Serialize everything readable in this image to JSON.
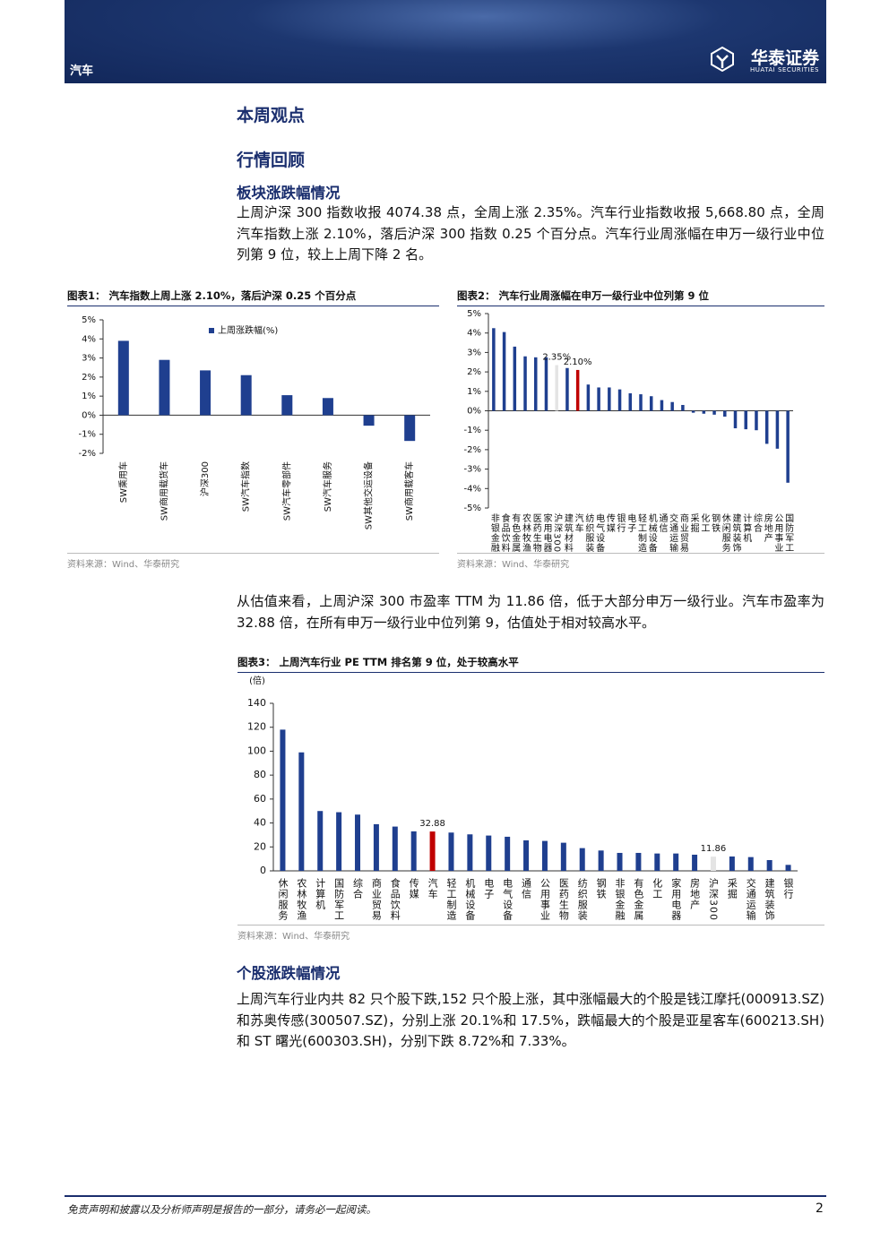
{
  "header": {
    "section": "汽车",
    "brand": "华泰证券",
    "brand_en": "HUATAI SECURITIES"
  },
  "headings": {
    "h1": "本周观点",
    "h2": "行情回顾",
    "h3": "板块涨跌幅情况",
    "h4": "个股涨跌幅情况"
  },
  "paragraphs": [
    "上周沪深 300 指数收报 4074.38 点，全周上涨 2.35%。汽车行业指数收报 5,668.80 点，全周汽车指数上涨 2.10%，落后沪深 300 指数 0.25 个百分点。汽车行业周涨幅在申万一级行业中位列第 9 位，较上上周下降 2 名。",
    "从估值来看，上周沪深 300 市盈率 TTM 为 11.86 倍，低于大部分申万一级行业。汽车市盈率为 32.88 倍，在所有申万一级行业中位列第 9，估值处于相对较高水平。",
    "上周汽车行业内共 82 只个股下跌,152 只个股上涨，其中涨幅最大的个股是钱江摩托(000913.SZ)和苏奥传感(300507.SZ)，分别上涨 20.1%和 17.5%，跌幅最大的个股是亚星客车(600213.SH)和 ST 曙光(600303.SH)，分别下跌 8.72%和 7.33%。"
  ],
  "chart_data": [
    {
      "type": "bar",
      "label": "图表1：",
      "title": "汽车指数上周上涨 2.10%，落后沪深 0.25 个百分点",
      "source": "资料来源：Wind、华泰研究",
      "categories": [
        "SW乘用车",
        "SW商用载货车",
        "沪深300",
        "SW汽车指数",
        "SW汽车零部件",
        "SW汽车服务",
        "SW其他交运设备",
        "SW商用载客车"
      ],
      "series": [
        {
          "name": "上周涨跌幅(%)",
          "color": "#1f3f8f",
          "values": [
            3.9,
            2.9,
            2.35,
            2.1,
            1.05,
            0.9,
            -0.55,
            -1.35
          ]
        }
      ],
      "ylim": [
        -2,
        5
      ],
      "yticks": [
        {
          "value": -2,
          "label": "-2%"
        },
        {
          "value": -1,
          "label": "-1%"
        },
        {
          "value": 0,
          "label": "0%"
        },
        {
          "value": 1,
          "label": "1%"
        },
        {
          "value": 2,
          "label": "2%"
        },
        {
          "value": 3,
          "label": "3%"
        },
        {
          "value": 4,
          "label": "4%"
        },
        {
          "value": 5,
          "label": "5%"
        }
      ],
      "legend": "top"
    },
    {
      "type": "bar",
      "label": "图表2：",
      "title": "汽车行业周涨幅在申万一级行业中位列第 9 位",
      "source": "资料来源：Wind、华泰研究",
      "categories": [
        "非银金融",
        "食品饮料",
        "有色金属",
        "农林牧渔",
        "医药生物",
        "家用电器",
        "沪深300",
        "建筑材料",
        "汽车",
        "纺织服装",
        "电气设备",
        "传媒",
        "银行",
        "电子",
        "轻工制造",
        "机械设备",
        "通信",
        "交通运输",
        "商业贸易",
        "采掘",
        "化工",
        "钢铁",
        "休闲服务",
        "建筑装饰",
        "计算机",
        "综合",
        "房地产",
        "公用事业",
        "国防军工"
      ],
      "values": [
        4.25,
        4.05,
        3.3,
        2.8,
        2.75,
        2.75,
        2.35,
        2.2,
        2.1,
        1.35,
        1.2,
        1.2,
        1.1,
        0.9,
        0.85,
        0.75,
        0.55,
        0.45,
        0.3,
        -0.1,
        -0.15,
        -0.2,
        -0.3,
        -0.9,
        -0.95,
        -1.0,
        -1.7,
        -1.95,
        -3.7
      ],
      "value_labels": [
        null,
        null,
        null,
        null,
        null,
        null,
        "2.35%",
        null,
        "2.10%",
        null,
        null,
        null,
        null,
        null,
        null,
        null,
        null,
        null,
        null,
        null,
        null,
        null,
        null,
        null,
        null,
        null,
        null,
        null,
        null
      ],
      "colors": [
        "#1f3f8f",
        "#1f3f8f",
        "#1f3f8f",
        "#1f3f8f",
        "#1f3f8f",
        "#1f3f8f",
        "#e4e4e4",
        "#1f3f8f",
        "#c00000",
        "#1f3f8f",
        "#1f3f8f",
        "#1f3f8f",
        "#1f3f8f",
        "#1f3f8f",
        "#1f3f8f",
        "#1f3f8f",
        "#1f3f8f",
        "#1f3f8f",
        "#1f3f8f",
        "#1f3f8f",
        "#1f3f8f",
        "#1f3f8f",
        "#1f3f8f",
        "#1f3f8f",
        "#1f3f8f",
        "#1f3f8f",
        "#1f3f8f",
        "#1f3f8f",
        "#1f3f8f"
      ],
      "ylim": [
        -5,
        5
      ],
      "yticks": [
        {
          "value": -5,
          "label": "-5%"
        },
        {
          "value": -4,
          "label": "-4%"
        },
        {
          "value": -3,
          "label": "-3%"
        },
        {
          "value": -2,
          "label": "-2%"
        },
        {
          "value": -1,
          "label": "-1%"
        },
        {
          "value": 0,
          "label": "0%"
        },
        {
          "value": 1,
          "label": "1%"
        },
        {
          "value": 2,
          "label": "2%"
        },
        {
          "value": 3,
          "label": "3%"
        },
        {
          "value": 4,
          "label": "4%"
        },
        {
          "value": 5,
          "label": "5%"
        }
      ]
    },
    {
      "type": "bar",
      "label": "图表3：",
      "title": "上周汽车行业 PE TTM 排名第 9 位，处于较高水平",
      "source": "资料来源：Wind、华泰研究",
      "ylabel": "(倍)",
      "categories": [
        "休闲服务",
        "农林牧渔",
        "计算机",
        "国防军工",
        "综合",
        "商业贸易",
        "食品饮料",
        "传媒",
        "汽车",
        "轻工制造",
        "机械设备",
        "电子",
        "电气设备",
        "通信",
        "公用事业",
        "医药生物",
        "纺织服装",
        "钢铁",
        "非银金融",
        "有色金属",
        "化工",
        "家用电器",
        "房地产",
        "沪深300",
        "采掘",
        "交通运输",
        "建筑装饰",
        "银行"
      ],
      "values": [
        118,
        99,
        50,
        49,
        47,
        39,
        37,
        33,
        32.88,
        32,
        30.5,
        29.5,
        28.5,
        25.5,
        25,
        23.5,
        19,
        17,
        15,
        15,
        14.5,
        14.5,
        13.5,
        11.86,
        12,
        11.5,
        9,
        5
      ],
      "value_labels": [
        null,
        null,
        null,
        null,
        null,
        null,
        null,
        null,
        "32.88",
        null,
        null,
        null,
        null,
        null,
        null,
        null,
        null,
        null,
        null,
        null,
        null,
        null,
        null,
        "11.86",
        null,
        null,
        null,
        null
      ],
      "colors": [
        "#1f3f8f",
        "#1f3f8f",
        "#1f3f8f",
        "#1f3f8f",
        "#1f3f8f",
        "#1f3f8f",
        "#1f3f8f",
        "#1f3f8f",
        "#c00000",
        "#1f3f8f",
        "#1f3f8f",
        "#1f3f8f",
        "#1f3f8f",
        "#1f3f8f",
        "#1f3f8f",
        "#1f3f8f",
        "#1f3f8f",
        "#1f3f8f",
        "#1f3f8f",
        "#1f3f8f",
        "#1f3f8f",
        "#1f3f8f",
        "#1f3f8f",
        "#e4e4e4",
        "#1f3f8f",
        "#1f3f8f",
        "#1f3f8f",
        "#1f3f8f"
      ],
      "ylim": [
        0,
        140
      ],
      "yticks": [
        0,
        20,
        40,
        60,
        80,
        100,
        120,
        140
      ]
    }
  ],
  "footer": {
    "disclaimer": "免责声明和披露以及分析师声明是报告的一部分，请务必一起阅读。",
    "page": "2"
  }
}
